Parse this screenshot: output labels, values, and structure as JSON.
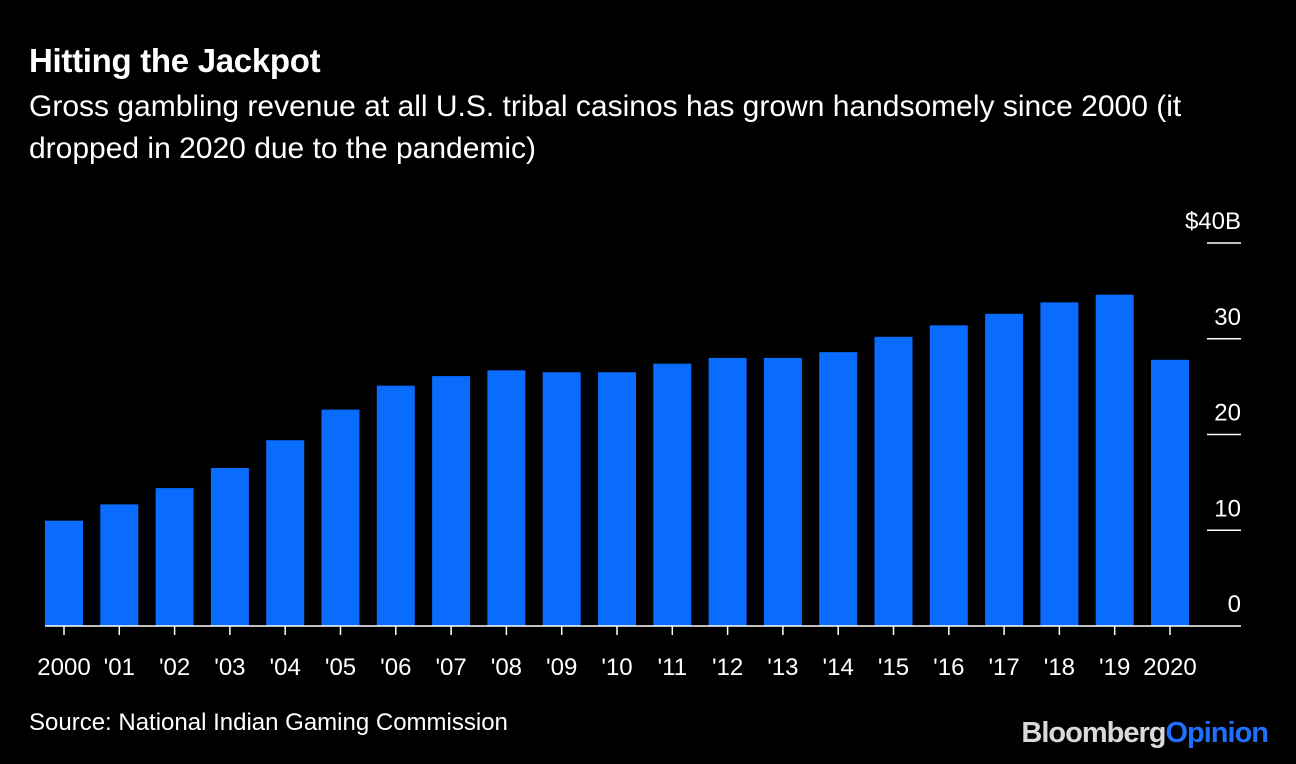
{
  "header": {
    "title": "Hitting the Jackpot",
    "subtitle": "Gross gambling revenue at all U.S. tribal casinos has grown handsomely since 2000 (it dropped in 2020 due to the pandemic)"
  },
  "footer": {
    "source": "Source: National Indian Gaming Commission",
    "brand_part1": "Bloomberg",
    "brand_part2": "Opinion"
  },
  "colors": {
    "background": "#000000",
    "bar": "#0a6cff",
    "text": "#ffffff",
    "brand_accent": "#1f70ff"
  },
  "chart_data": {
    "type": "bar",
    "categories": [
      "2000",
      "'01",
      "'02",
      "'03",
      "'04",
      "'05",
      "'06",
      "'07",
      "'08",
      "'09",
      "'10",
      "'11",
      "'12",
      "'13",
      "'14",
      "'15",
      "'16",
      "'17",
      "'18",
      "'19",
      "2020"
    ],
    "values": [
      11.0,
      12.7,
      14.4,
      16.5,
      19.4,
      22.6,
      25.1,
      26.1,
      26.7,
      26.5,
      26.5,
      27.4,
      28.0,
      28.0,
      28.6,
      30.2,
      31.4,
      32.6,
      33.8,
      34.6,
      27.8
    ],
    "ylim": [
      0,
      40
    ],
    "yticks": [
      0,
      10,
      20,
      30,
      40
    ],
    "ytick_labels": [
      "0",
      "10",
      "20",
      "30",
      "$40B"
    ],
    "grid": false,
    "axis_side": "right"
  }
}
